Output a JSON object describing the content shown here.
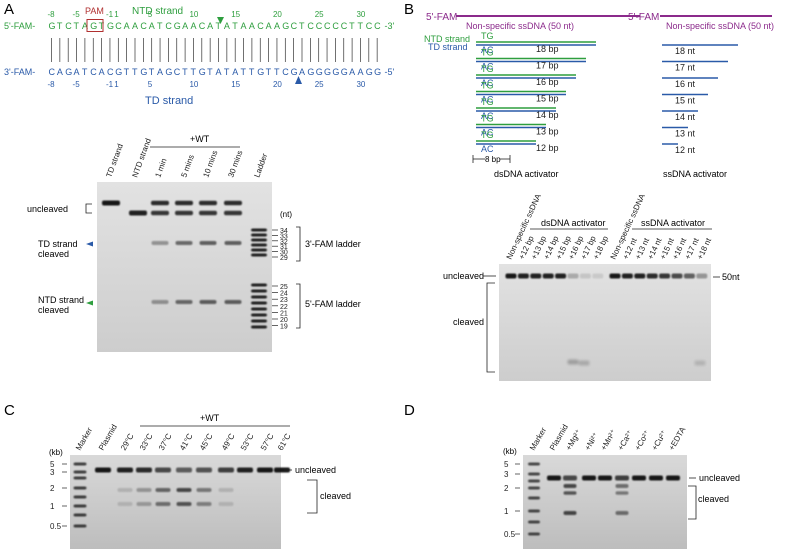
{
  "panelA": {
    "letter": "A",
    "pam": "PAM",
    "ntd_strand_title": "NTD strand",
    "td_strand_title": "TD strand",
    "ntd_nums": [
      "-8",
      "-5",
      "-1",
      "1",
      "5",
      "10",
      "15",
      "20",
      "25",
      "30"
    ],
    "ntd_seq": [
      "5'-FAM-",
      "G",
      "T",
      "C",
      "T",
      "A",
      "G",
      "T",
      "G",
      "C",
      "A",
      "A",
      "C",
      "A",
      "T",
      "C",
      "G",
      "A",
      "A",
      "C",
      "A",
      "T",
      "A",
      "T",
      "A",
      "A",
      "C",
      "A",
      "A",
      "G",
      "C",
      "T",
      "C",
      "C",
      "C",
      "C",
      "C",
      "T",
      "T",
      "C",
      "C",
      "-3'"
    ],
    "td_seq": [
      "3'-FAM-",
      "C",
      "A",
      "G",
      "A",
      "T",
      "C",
      "A",
      "C",
      "G",
      "T",
      "T",
      "G",
      "T",
      "A",
      "G",
      "C",
      "T",
      "T",
      "G",
      "T",
      "A",
      "T",
      "A",
      "T",
      "T",
      "G",
      "T",
      "T",
      "C",
      "G",
      "A",
      "G",
      "G",
      "G",
      "G",
      "G",
      "A",
      "A",
      "G",
      "G",
      "-5'"
    ],
    "td_nums": [
      "-8",
      "-5",
      "-1",
      "1",
      "5",
      "10",
      "15",
      "20",
      "25",
      "30"
    ],
    "gel_lanes": [
      "TD strand",
      "NTD strand",
      "1 min",
      "5 mins",
      "10 mins",
      "30 mins",
      "Ladder"
    ],
    "wt_label": "+WT",
    "nt_label": "(nt)",
    "label_uncleaved": "uncleaved",
    "label_td_cleaved": [
      "TD strand",
      "cleaved"
    ],
    "label_ntd_cleaved": [
      "NTD strand",
      "cleaved"
    ],
    "ladder3_ticks": [
      "34",
      "33",
      "32",
      "31",
      "30",
      "29"
    ],
    "ladder3_label": "3'-FAM ladder",
    "ladder5_ticks": [
      "25",
      "24",
      "23",
      "22",
      "21",
      "20",
      "19"
    ],
    "ladder5_label": "5'-FAM ladder"
  },
  "panelB": {
    "letter": "B",
    "fam": "5'-FAM",
    "nonspecific": "Non-specific ssDNA (50 nt)",
    "ntd_strand": "NTD strand",
    "td_strand": "TD strand",
    "tg": "TG",
    "ac": "AC",
    "ds_lengths": [
      "18 bp",
      "17 bp",
      "16 bp",
      "15 bp",
      "14 bp",
      "13 bp",
      "12 bp"
    ],
    "ss_lengths": [
      "18 nt",
      "17 nt",
      "16 nt",
      "15 nt",
      "14 nt",
      "13 nt",
      "12 nt"
    ],
    "bp8": "8 bp",
    "ds_caption": "dsDNA activator",
    "ss_caption": "ssDNA activator",
    "gel_ds_title": "dsDNA activator",
    "gel_ss_title": "ssDNA activator",
    "gel_lanes_ds": [
      "Non-specific ssDNA",
      "+12 bp",
      "+13 bp",
      "+14 bp",
      "+15 bp",
      "+16 bp",
      "+17 bp",
      "+18 bp"
    ],
    "gel_lanes_ss": [
      "Non-specific ssDNA",
      "+12 nt",
      "+13 nt",
      "+14 nt",
      "+15 nt",
      "+16 nt",
      "+17 nt",
      "+18 nt"
    ],
    "uncleaved": "uncleaved",
    "cleaved": "cleaved",
    "size": "50nt"
  },
  "panelC": {
    "letter": "C",
    "kb": "(kb)",
    "markers": [
      "5",
      "3",
      "2",
      "1",
      "0.5"
    ],
    "wt_label": "+WT",
    "lanes": [
      "Marker",
      "Plasmid",
      "29°C",
      "33°C",
      "37°C",
      "41°C",
      "45°C",
      "49°C",
      "53°C",
      "57°C",
      "61°C"
    ],
    "uncleaved": "uncleaved",
    "cleaved": "cleaved"
  },
  "panelD": {
    "letter": "D",
    "kb": "(kb)",
    "markers": [
      "5",
      "3",
      "2",
      "1",
      "0.5"
    ],
    "lanes": [
      "Marker",
      "Plasmid",
      "+Mg²⁺",
      "+Ni²⁺",
      "+Mn²⁺",
      "+Ca²⁺",
      "+Co²⁺",
      "+Cu²⁺",
      "+EDTA"
    ],
    "uncleaved": "uncleaved",
    "cleaved": "cleaved"
  },
  "colors": {
    "ntd_green": "#2e9e3e",
    "td_blue": "#2a5aa8",
    "pam_red": "#b03030",
    "fam_purple": "#8b2a8b",
    "gel_bg": "#d4d4d4",
    "band": "#1a1a1a"
  }
}
